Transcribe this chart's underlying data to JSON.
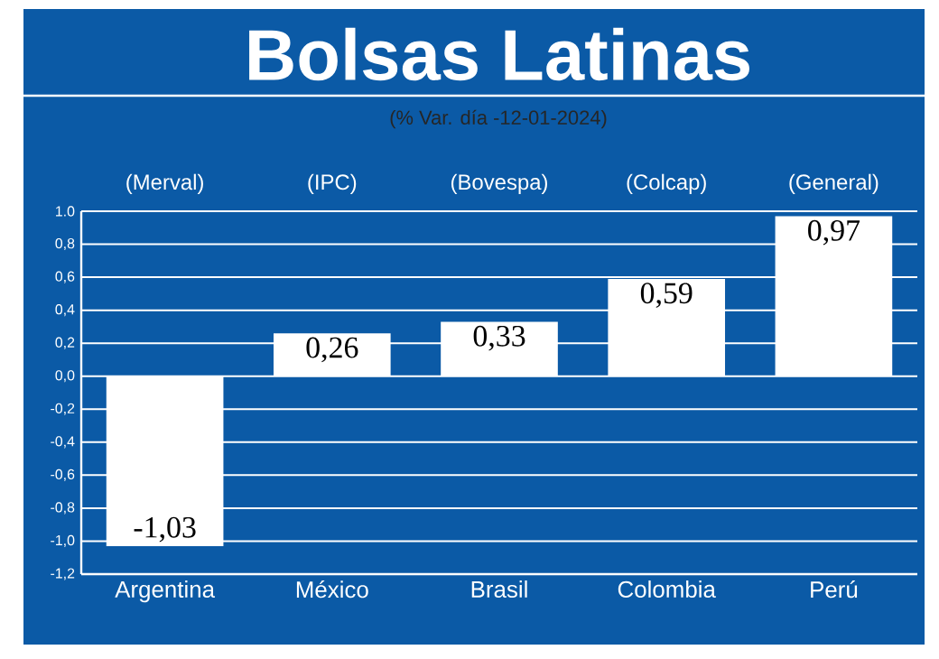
{
  "chart_data": {
    "type": "bar",
    "title": "Bolsas Latinas",
    "subtitle": "(% Var. día -12-01-2024)",
    "categories": [
      "Argentina",
      "México",
      "Brasil",
      "Colombia",
      "Perú"
    ],
    "values": [
      -1.03,
      0.26,
      0.33,
      0.59,
      0.97
    ],
    "value_labels": [
      "-1,03",
      "0,26",
      "0,33",
      "0,59",
      "0,97"
    ],
    "color": "#ffffff",
    "annotations": [
      "(Merval)",
      "(IPC)",
      "(Bovespa)",
      "(Colcap)",
      "(General)"
    ],
    "ylim": [
      -1.2,
      1.0
    ],
    "yticks": [
      {
        "value": -1.2,
        "label": "-1,2"
      },
      {
        "value": -1.0,
        "label": "-1,0"
      },
      {
        "value": -0.8,
        "label": "-0,8"
      },
      {
        "value": -0.6,
        "label": "-0,6"
      },
      {
        "value": -0.4,
        "label": "-0,4"
      },
      {
        "value": -0.2,
        "label": "-0,2"
      },
      {
        "value": 0.0,
        "label": "0,0"
      },
      {
        "value": 0.2,
        "label": "0,2"
      },
      {
        "value": 0.4,
        "label": "0,4"
      },
      {
        "value": 0.6,
        "label": "0,6"
      },
      {
        "value": 0.8,
        "label": "0,8"
      },
      {
        "value": 1.0,
        "label": "1.0"
      }
    ],
    "grid": "y"
  }
}
